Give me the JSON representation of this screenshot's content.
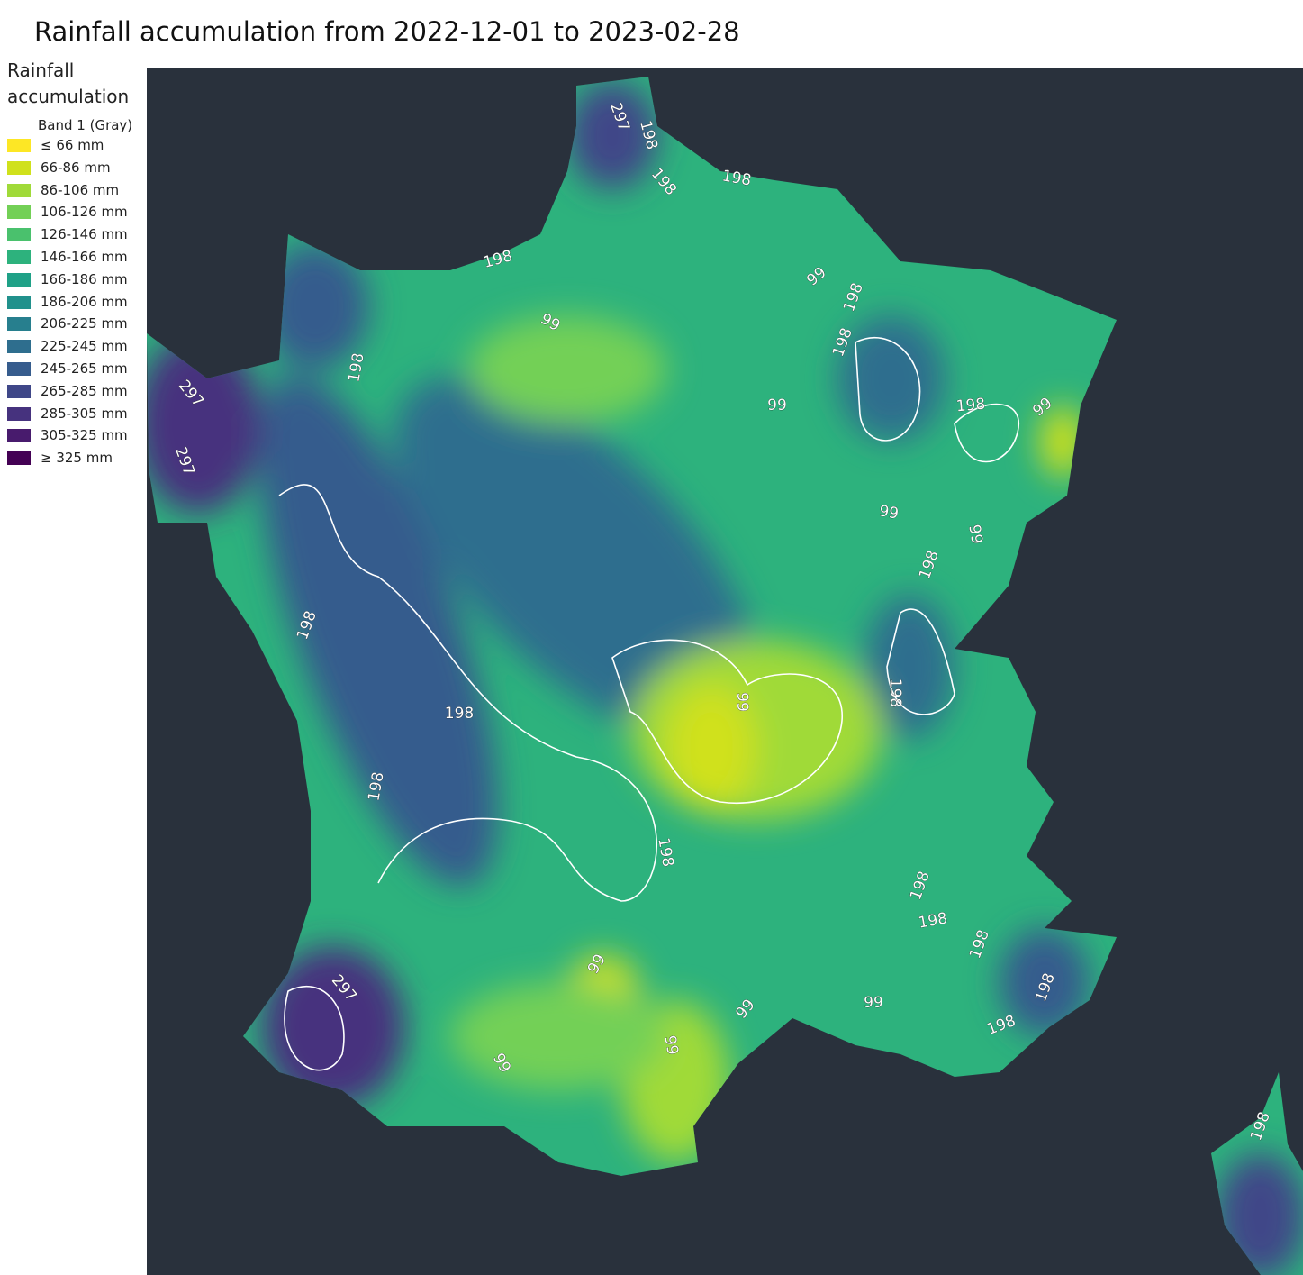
{
  "title": "Rainfall accumulation from 2022-12-01 to 2023-02-28",
  "legend": {
    "title": "Rainfall accumulation",
    "band": "Band 1 (Gray)",
    "items": [
      {
        "label": "≤ 66 mm",
        "color": "#fde725"
      },
      {
        "label": "66-86 mm",
        "color": "#d0e11c"
      },
      {
        "label": "86-106 mm",
        "color": "#a0da39"
      },
      {
        "label": "106-126 mm",
        "color": "#73d056"
      },
      {
        "label": "126-146 mm",
        "color": "#4ac16d"
      },
      {
        "label": "146-166 mm",
        "color": "#2db27d"
      },
      {
        "label": "166-186 mm",
        "color": "#1fa187"
      },
      {
        "label": "186-206 mm",
        "color": "#21918c"
      },
      {
        "label": "206-225 mm",
        "color": "#277f8e"
      },
      {
        "label": "225-245 mm",
        "color": "#2e6e8e"
      },
      {
        "label": "245-265 mm",
        "color": "#365c8d"
      },
      {
        "label": "265-285 mm",
        "color": "#3f4788"
      },
      {
        "label": "285-305 mm",
        "color": "#46327e"
      },
      {
        "label": "305-325 mm",
        "color": "#481b6d"
      },
      {
        "label": "≥ 325 mm",
        "color": "#440154"
      }
    ]
  },
  "contour_labels": [
    297,
    198,
    198,
    198,
    198,
    99,
    198,
    99,
    198,
    198,
    297,
    99,
    198,
    99,
    297,
    99,
    99,
    198,
    198,
    198,
    99,
    198,
    198,
    198,
    198,
    198,
    198,
    99,
    297,
    198,
    99,
    99,
    198,
    99,
    99,
    198
  ]
}
